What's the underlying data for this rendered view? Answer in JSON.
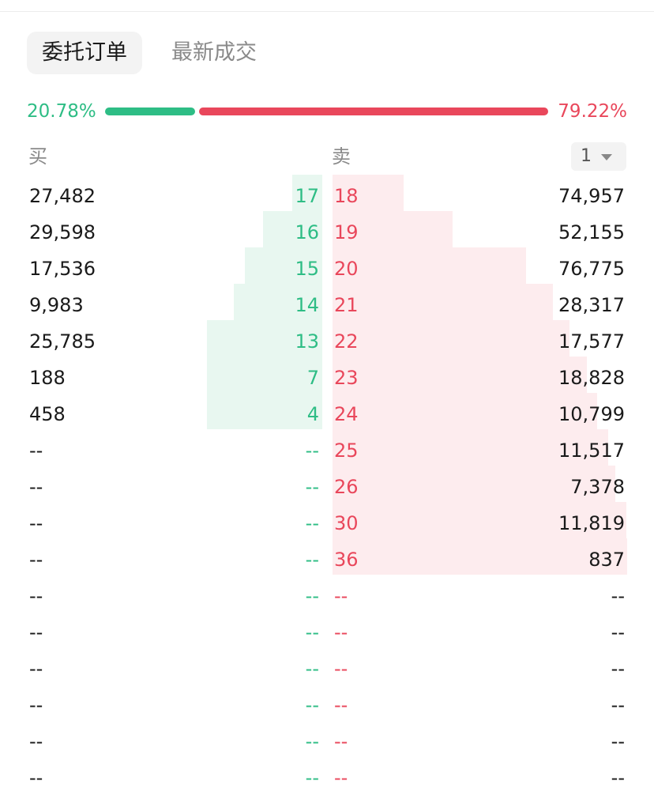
{
  "tabs": [
    {
      "label": "委托订单",
      "active": true
    },
    {
      "label": "最新成交",
      "active": false
    }
  ],
  "ratio": {
    "buy_pct": "20.78%",
    "sell_pct": "79.22%",
    "buy_fraction": 0.2078
  },
  "headers": {
    "buy": "买",
    "sell": "卖"
  },
  "precision": {
    "value": "1"
  },
  "colors": {
    "buy": "#2ebd85",
    "sell": "#e9475b",
    "buy_bg": "#e8f7f0",
    "sell_bg": "#fdecee"
  },
  "orderbook": [
    {
      "buy_qty": "27,482",
      "buy_price": "17",
      "sell_price": "18",
      "sell_qty": "74,957"
    },
    {
      "buy_qty": "29,598",
      "buy_price": "16",
      "sell_price": "19",
      "sell_qty": "52,155"
    },
    {
      "buy_qty": "17,536",
      "buy_price": "15",
      "sell_price": "20",
      "sell_qty": "76,775"
    },
    {
      "buy_qty": "9,983",
      "buy_price": "14",
      "sell_price": "21",
      "sell_qty": "28,317"
    },
    {
      "buy_qty": "25,785",
      "buy_price": "13",
      "sell_price": "22",
      "sell_qty": "17,577"
    },
    {
      "buy_qty": "188",
      "buy_price": "7",
      "sell_price": "23",
      "sell_qty": "18,828"
    },
    {
      "buy_qty": "458",
      "buy_price": "4",
      "sell_price": "24",
      "sell_qty": "10,799"
    },
    {
      "buy_qty": "--",
      "buy_price": "--",
      "sell_price": "25",
      "sell_qty": "11,517"
    },
    {
      "buy_qty": "--",
      "buy_price": "--",
      "sell_price": "26",
      "sell_qty": "7,378"
    },
    {
      "buy_qty": "--",
      "buy_price": "--",
      "sell_price": "30",
      "sell_qty": "11,819"
    },
    {
      "buy_qty": "--",
      "buy_price": "--",
      "sell_price": "36",
      "sell_qty": "837"
    },
    {
      "buy_qty": "--",
      "buy_price": "--",
      "sell_price": "--",
      "sell_qty": "--"
    },
    {
      "buy_qty": "--",
      "buy_price": "--",
      "sell_price": "--",
      "sell_qty": "--"
    },
    {
      "buy_qty": "--",
      "buy_price": "--",
      "sell_price": "--",
      "sell_qty": "--"
    },
    {
      "buy_qty": "--",
      "buy_price": "--",
      "sell_price": "--",
      "sell_qty": "--"
    },
    {
      "buy_qty": "--",
      "buy_price": "--",
      "sell_price": "--",
      "sell_qty": "--"
    },
    {
      "buy_qty": "--",
      "buy_price": "--",
      "sell_price": "--",
      "sell_qty": "--"
    }
  ]
}
